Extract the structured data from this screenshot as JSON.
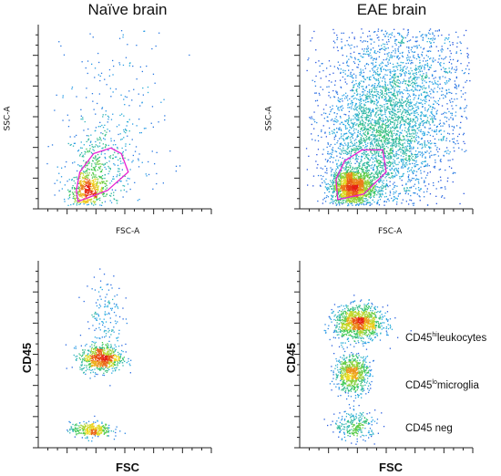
{
  "chart_data": [
    {
      "type": "scatter",
      "title": "Naïve brain",
      "xlabel": "FSC-A",
      "ylabel": "SSC-A",
      "gate": "polygon",
      "gate_color": "#e61fd0",
      "populations": [
        {
          "center": [
            0.28,
            0.1
          ],
          "spread": [
            0.05,
            0.05
          ],
          "count": 420
        },
        {
          "center": [
            0.34,
            0.22
          ],
          "spread": [
            0.1,
            0.12
          ],
          "count": 380
        },
        {
          "center": [
            0.45,
            0.5
          ],
          "spread": [
            0.16,
            0.28
          ],
          "count": 220
        }
      ],
      "color_scale": "density rainbow (blue-green-yellow-red)"
    },
    {
      "type": "scatter",
      "title": "EAE brain",
      "xlabel": "FSC-A",
      "ylabel": "SSC-A",
      "gate": "polygon",
      "gate_color": "#e61fd0",
      "populations": [
        {
          "center": [
            0.3,
            0.12
          ],
          "spread": [
            0.06,
            0.05
          ],
          "count": 1500
        },
        {
          "center": [
            0.45,
            0.35
          ],
          "spread": [
            0.16,
            0.2
          ],
          "count": 2200
        },
        {
          "center": [
            0.6,
            0.65
          ],
          "spread": [
            0.22,
            0.25
          ],
          "count": 2000
        }
      ],
      "color_scale": "density rainbow (blue-green-yellow-red)"
    },
    {
      "type": "scatter",
      "xlabel": "FSC",
      "ylabel": "CD45",
      "populations": [
        {
          "center": [
            0.36,
            0.48
          ],
          "spread": [
            0.06,
            0.035
          ],
          "count": 650
        },
        {
          "center": [
            0.3,
            0.1
          ],
          "spread": [
            0.06,
            0.02
          ],
          "count": 320
        },
        {
          "center": [
            0.38,
            0.7
          ],
          "spread": [
            0.05,
            0.12
          ],
          "count": 160
        }
      ],
      "color_scale": "density rainbow (blue-green-yellow-red)"
    },
    {
      "type": "scatter",
      "xlabel": "FSC",
      "ylabel": "CD45",
      "populations": [
        {
          "center": [
            0.34,
            0.67
          ],
          "spread": [
            0.07,
            0.045
          ],
          "count": 1100
        },
        {
          "center": [
            0.3,
            0.4
          ],
          "spread": [
            0.05,
            0.05
          ],
          "count": 700
        },
        {
          "center": [
            0.32,
            0.12
          ],
          "spread": [
            0.06,
            0.04
          ],
          "count": 260
        }
      ],
      "annotations": [
        {
          "prefix": "CD45",
          "sup": "hi",
          "suffix": "leukocytes"
        },
        {
          "prefix": "CD45",
          "sup": "lo",
          "suffix": "microglia"
        },
        {
          "prefix": "CD45 neg",
          "sup": "",
          "suffix": ""
        }
      ],
      "color_scale": "density rainbow (blue-green-yellow-red)"
    }
  ]
}
